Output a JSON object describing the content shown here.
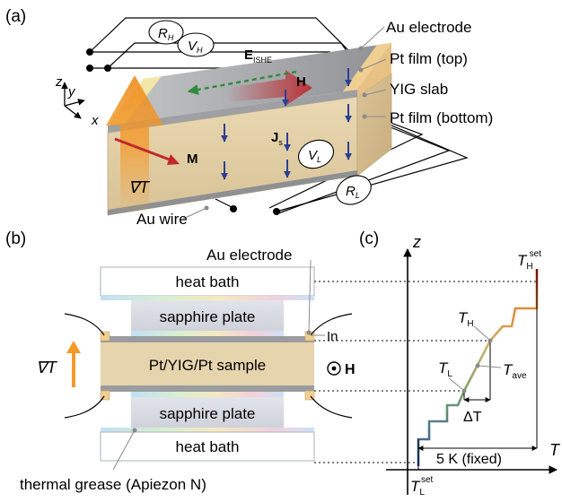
{
  "panels": {
    "a": "(a)",
    "b": "(b)",
    "c": "(c)"
  },
  "panel_a": {
    "au_electrode": "Au electrode",
    "pt_top": "Pt film (top)",
    "yig_slab": "YIG slab",
    "pt_bottom": "Pt film (bottom)",
    "au_wire": "Au wire",
    "e_ishe": "E",
    "e_ishe_sub": "ISHE",
    "h": "H",
    "js": "J",
    "js_sub": "s",
    "m": "M",
    "grad_t": "∇T",
    "r_h": "R",
    "r_h_sub": "H",
    "v_h": "V",
    "v_h_sub": "H",
    "v_l": "V",
    "v_l_sub": "L",
    "r_l": "R",
    "r_l_sub": "L",
    "axis_x": "x",
    "axis_y": "y",
    "axis_z": "z"
  },
  "panel_b": {
    "au_electrode": "Au electrode",
    "heat_bath_top": "heat bath",
    "sapphire_top": "sapphire plate",
    "sample": "Pt/YIG/Pt sample",
    "sapphire_bottom": "sapphire plate",
    "heat_bath_bottom": "heat bath",
    "in_label": "In",
    "grad_t": "∇T",
    "h": "H",
    "grease": "thermal grease (Apiezon N)"
  },
  "panel_c": {
    "axis_z": "z",
    "axis_t": "T",
    "th_set": "T",
    "th_set_sub": "H",
    "th_set_sup": "set",
    "th": "T",
    "th_sub": "H",
    "tave": "T",
    "tave_sub": "ave",
    "tl": "T",
    "tl_sub": "L",
    "delta_t": "ΔT",
    "fixed": "5 K (fixed)",
    "tl_set": "T",
    "tl_set_sub": "L",
    "tl_set_sup": "set"
  },
  "colors": {
    "yig": "#e6d4ad",
    "pt": "#a7a9ac",
    "au": "#f0cf92",
    "field_red": "#c0282d",
    "arrow_orange": "#f39a2b",
    "js_blue": "#2b3f93",
    "e_green": "#2f8a3c"
  }
}
